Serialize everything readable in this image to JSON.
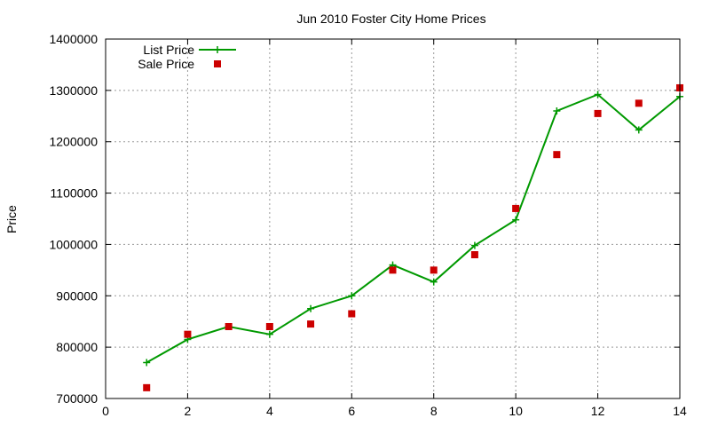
{
  "chart_data": {
    "type": "line",
    "title": "Jun 2010 Foster City Home Prices",
    "xlabel": "",
    "ylabel": "Price",
    "xlim": [
      0,
      14
    ],
    "ylim": [
      700000,
      1400000
    ],
    "x_ticks": [
      0,
      2,
      4,
      6,
      8,
      10,
      12,
      14
    ],
    "y_ticks": [
      700000,
      800000,
      900000,
      1000000,
      1100000,
      1200000,
      1300000,
      1400000
    ],
    "grid": true,
    "legend_position": "top-left",
    "series": [
      {
        "name": "List Price",
        "style": "line-with-plus-markers",
        "color": "#009900",
        "x": [
          1,
          2,
          3,
          4,
          5,
          6,
          7,
          8,
          9,
          10,
          11,
          12,
          13,
          14
        ],
        "y": [
          770000,
          815000,
          840000,
          825000,
          875000,
          900000,
          960000,
          927000,
          998000,
          1048000,
          1260000,
          1292000,
          1223000,
          1288000
        ]
      },
      {
        "name": "Sale Price",
        "style": "square-markers",
        "color": "#cc0000",
        "x": [
          1,
          2,
          3,
          4,
          5,
          6,
          7,
          8,
          9,
          10,
          11,
          12,
          13,
          14
        ],
        "y": [
          721000,
          825000,
          840000,
          840000,
          845000,
          865000,
          950000,
          950000,
          980000,
          1070000,
          1175000,
          1255000,
          1275000,
          1305000
        ]
      }
    ]
  }
}
